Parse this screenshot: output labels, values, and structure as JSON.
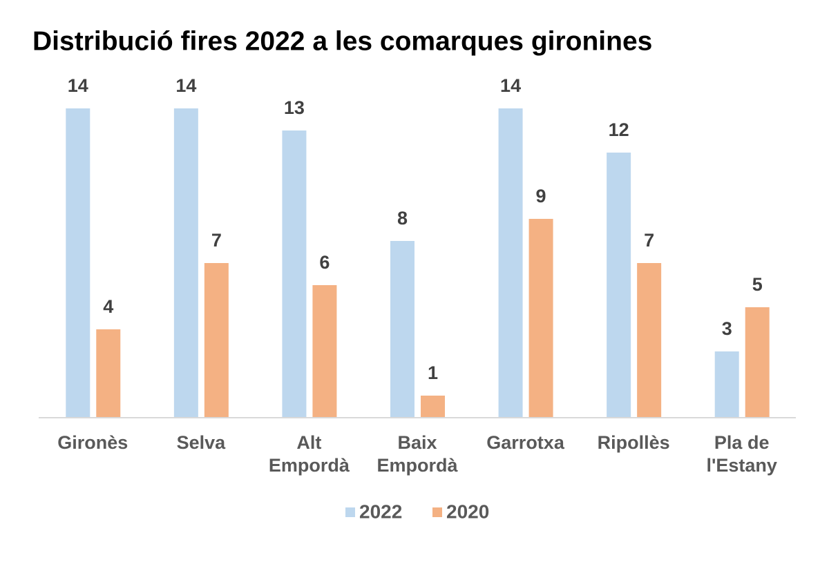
{
  "chart_data": {
    "type": "bar",
    "title": "Distribució fires 2022 a les comarques gironines",
    "categories": [
      "Gironès",
      "Selva",
      "Alt Empordà",
      "Baix Empordà",
      "Garrotxa",
      "Ripollès",
      "Pla de l'Estany"
    ],
    "series": [
      {
        "name": "2022",
        "color": "#bdd7ee",
        "values": [
          14,
          14,
          13,
          8,
          14,
          12,
          3
        ]
      },
      {
        "name": "2020",
        "color": "#f4b183",
        "values": [
          4,
          7,
          6,
          1,
          9,
          7,
          5
        ]
      }
    ],
    "ylim": [
      0,
      14
    ],
    "legend": "bottom"
  }
}
